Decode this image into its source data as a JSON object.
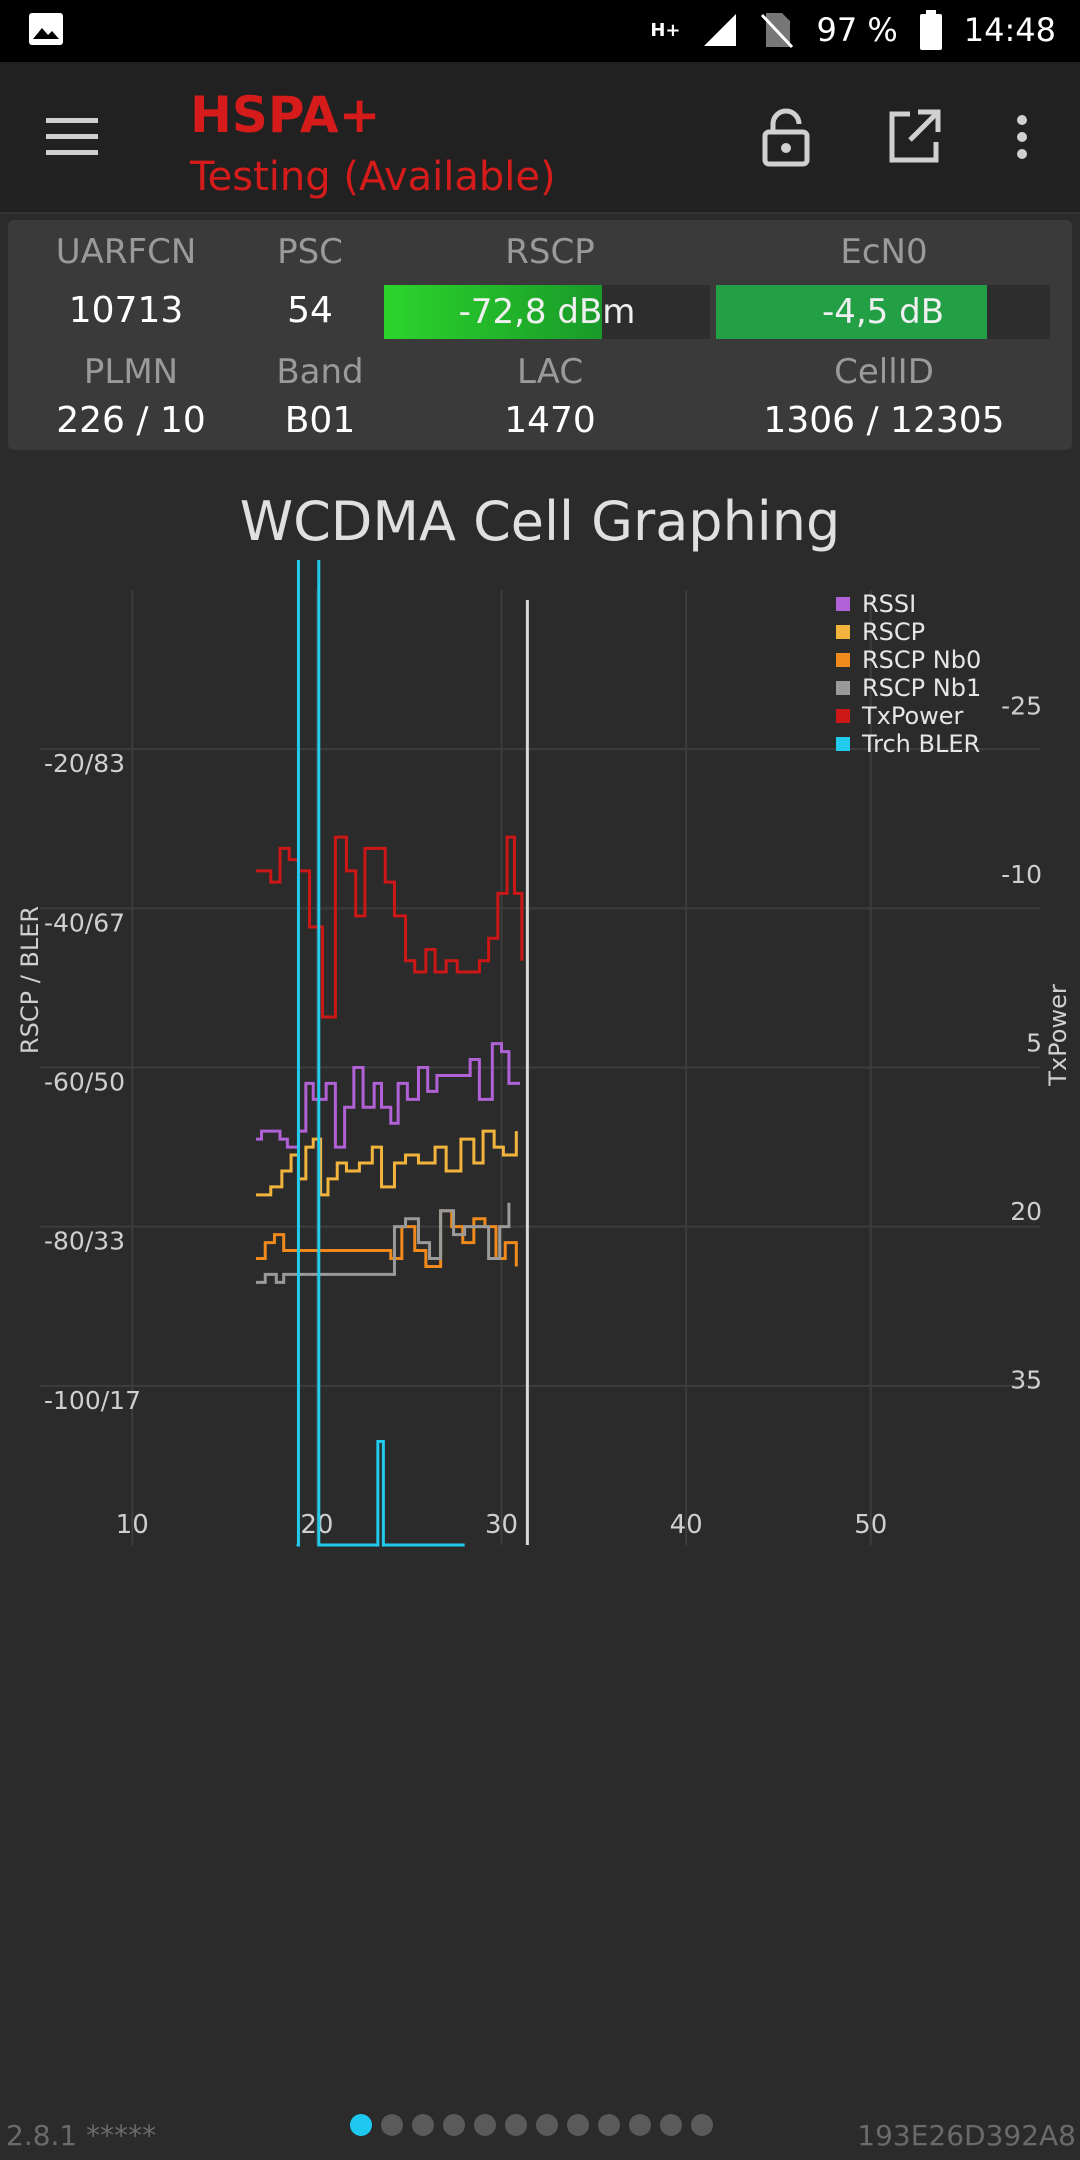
{
  "statusbar": {
    "battery": "97 %",
    "time": "14:48",
    "network_badge": "H+"
  },
  "appbar": {
    "title": "HSPA+",
    "subtitle": "Testing (Available)",
    "icons": [
      "menu-icon",
      "lock-icon",
      "open-external-icon",
      "more-vert-icon"
    ]
  },
  "cell": {
    "labels": {
      "uarfcn": "UARFCN",
      "psc": "PSC",
      "rscp": "RSCP",
      "ecn0": "EcN0",
      "plmn": "PLMN",
      "band": "Band",
      "lac": "LAC",
      "cellid": "CellID"
    },
    "values": {
      "uarfcn": "10713",
      "psc": "54",
      "rscp": "-72,8 dBm",
      "ecn0": "-4,5 dB",
      "plmn": "226 / 10",
      "band": "B01",
      "lac": "1470",
      "cellid": "1306 / 12305"
    },
    "rscp_fill_fraction": 0.67,
    "ecn0_fill_fraction": 0.81,
    "colors": {
      "rscp_bar": "#2bd42b",
      "ecn0_bar": "#23a045"
    }
  },
  "graph": {
    "title": "WCDMA Cell Graphing"
  },
  "chart_data": {
    "type": "line",
    "xlabel": "",
    "ylabel": "RSCP / BLER",
    "y2label": "TxPower",
    "x_ticks": [
      "10",
      "20",
      "30",
      "40",
      "50"
    ],
    "y_ticks": [
      "-20/83",
      "-40/67",
      "-60/50",
      "-80/33",
      "-100/17"
    ],
    "y2_ticks": [
      "-25",
      "-10",
      "5",
      "20",
      "35"
    ],
    "xlim": [
      5,
      57
    ],
    "ylim": [
      -120,
      0
    ],
    "y2lim": [
      50,
      -35
    ],
    "grid": true,
    "legend_position": "top-right",
    "cursor_x": 31.4,
    "series": [
      {
        "name": "RSSI",
        "color": "#b061d6",
        "x": [
          16.7,
          17,
          17.7,
          18,
          18.4,
          19,
          19.4,
          19.8,
          20.5,
          21,
          21.5,
          22,
          22.5,
          23.1,
          23.5,
          24,
          24.4,
          24.9,
          25.5,
          26,
          26.5,
          27,
          27.6,
          28.3,
          28.8,
          29.5,
          30,
          30.4,
          31.0
        ],
        "y": [
          -69,
          -68,
          -68,
          -69,
          -70,
          -68,
          -62,
          -64,
          -62,
          -70,
          -65,
          -60,
          -65,
          -62,
          -65,
          -67,
          -62,
          -64,
          -60,
          -63,
          -61,
          -61,
          -61,
          -59,
          -64,
          -57,
          -58,
          -62,
          -62
        ]
      },
      {
        "name": "RSCP",
        "color": "#f3b43e",
        "x": [
          16.7,
          17.5,
          18.1,
          18.6,
          19.0,
          19.4,
          19.8,
          20.2,
          20.6,
          21.1,
          21.6,
          22.3,
          23.0,
          23.5,
          24.2,
          24.8,
          25.5,
          26.4,
          27.0,
          27.8,
          28.5,
          29.0,
          29.6,
          30.1,
          30.8
        ],
        "y": [
          -76,
          -75,
          -73,
          -71,
          -74,
          -70,
          -69,
          -76,
          -74,
          -72,
          -73,
          -72,
          -70,
          -75,
          -72,
          -71,
          -72,
          -70,
          -73,
          -69,
          -72,
          -68,
          -70,
          -71,
          -68
        ]
      },
      {
        "name": "RSCP Nb0",
        "color": "#f08a1c",
        "x": [
          16.7,
          17.2,
          17.7,
          18.2,
          24.0,
          24.6,
          25.3,
          25.9,
          26.7,
          27.3,
          27.9,
          28.5,
          29.1,
          29.7,
          30.2,
          30.8
        ],
        "y": [
          -84,
          -82,
          -81,
          -83,
          -84,
          -80,
          -83,
          -85,
          -78,
          -80,
          -82,
          -79,
          -80,
          -84,
          -82,
          -85
        ]
      },
      {
        "name": "RSCP Nb1",
        "color": "#9a9a9a",
        "x": [
          16.7,
          17.2,
          17.8,
          18.2,
          24.2,
          24.8,
          25.5,
          26.1,
          26.7,
          27.4,
          28.0,
          28.7,
          29.3,
          29.9,
          30.4
        ],
        "y": [
          -87,
          -86,
          -87,
          -86,
          -80,
          -79,
          -82,
          -84,
          -78,
          -81,
          -80,
          -80,
          -84,
          -80,
          -77
        ]
      },
      {
        "name": "TxPower",
        "color": "#cc1717",
        "axis": "y2",
        "x": [
          16.7,
          17.5,
          18.0,
          18.5,
          19.0,
          19.6,
          20.3,
          21.0,
          21.6,
          22.1,
          22.6,
          23.2,
          23.7,
          24.2,
          24.8,
          25.3,
          25.9,
          26.4,
          27.0,
          27.6,
          28.2,
          28.8,
          29.3,
          29.8,
          30.3,
          30.7,
          31.1
        ],
        "y": [
          -10,
          -9,
          -12,
          -11,
          -10,
          -5,
          3,
          -13,
          -10,
          -6,
          -12,
          -12,
          -9,
          -6,
          -2,
          -1,
          -3,
          -1,
          -2,
          -1,
          -1,
          -2,
          -4,
          -8,
          -13,
          -8,
          -2
        ]
      },
      {
        "name": "Trch BLER",
        "color": "#22cbec",
        "x": [
          18.9,
          19.0,
          20.0,
          20.1,
          23.0,
          23.3,
          23.6,
          28.0
        ],
        "y": [
          -120,
          10,
          10,
          -120,
          -120,
          -107,
          -120,
          -120
        ]
      }
    ]
  },
  "footer": {
    "version": "2.8.1 *****",
    "device_id": "193E26D392A8",
    "page_count": 12,
    "active_page": 0
  }
}
